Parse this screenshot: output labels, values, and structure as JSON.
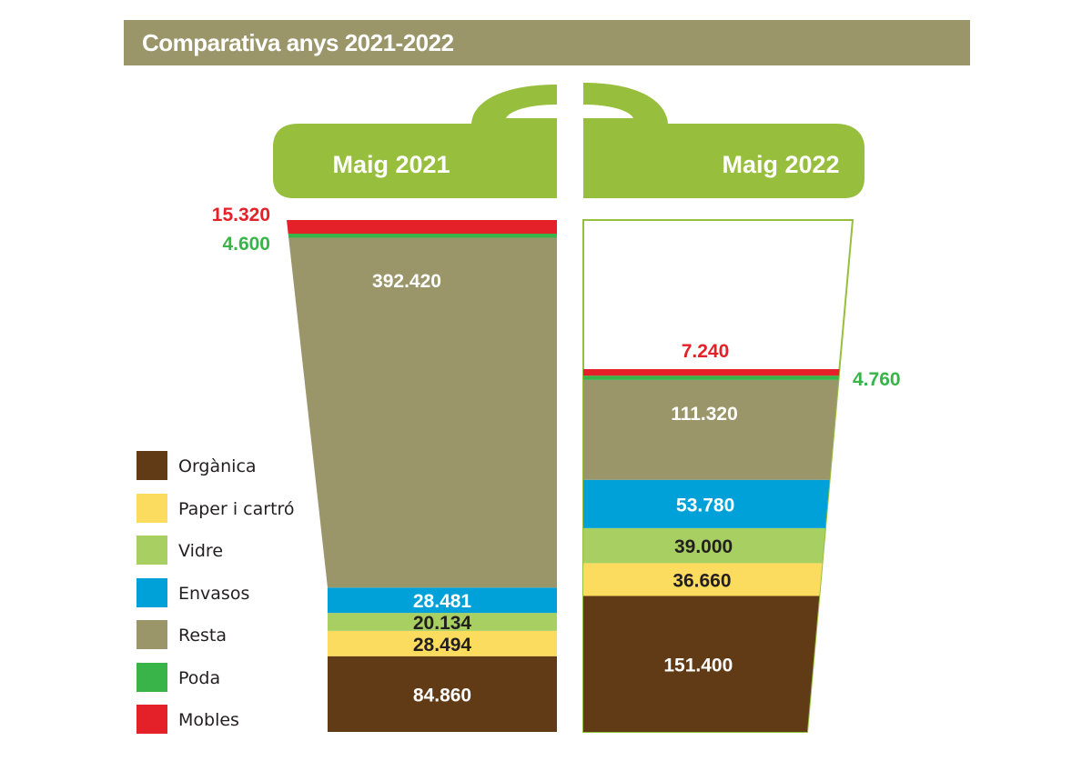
{
  "title": "Comparativa anys 2021-2022",
  "colors": {
    "title_bar": "#9a966a",
    "lid": "#97bf3d",
    "Orgànica": "#613a16",
    "Paper i cartró": "#fbdc5f",
    "Vidre": "#a7cf62",
    "Envasos": "#00a1d8",
    "Resta": "#9a966a",
    "Poda": "#38b449",
    "Mobles": "#e42129"
  },
  "legend": [
    {
      "name": "Orgànica"
    },
    {
      "name": "Paper i cartró"
    },
    {
      "name": "Vidre"
    },
    {
      "name": "Envasos"
    },
    {
      "name": "Resta"
    },
    {
      "name": "Poda"
    },
    {
      "name": "Mobles"
    }
  ],
  "chart_data": {
    "type": "bar",
    "stacked": true,
    "categories": [
      "Maig 2021",
      "Maig 2022"
    ],
    "series": [
      {
        "name": "Orgànica",
        "values": [
          84860,
          151400
        ],
        "labels": [
          "84.860",
          "151.400"
        ]
      },
      {
        "name": "Paper i cartró",
        "values": [
          28494,
          36660
        ],
        "labels": [
          "28.494",
          "36.660"
        ]
      },
      {
        "name": "Vidre",
        "values": [
          20134,
          39000
        ],
        "labels": [
          "20.134",
          "39.000"
        ]
      },
      {
        "name": "Envasos",
        "values": [
          28481,
          53780
        ],
        "labels": [
          "28.481",
          "53.780"
        ]
      },
      {
        "name": "Resta",
        "values": [
          392420,
          111320
        ],
        "labels": [
          "392.420",
          "111.320"
        ]
      },
      {
        "name": "Poda",
        "values": [
          4600,
          4760
        ],
        "labels": [
          "4.600",
          "4.760"
        ]
      },
      {
        "name": "Mobles",
        "values": [
          15320,
          7240
        ],
        "labels": [
          "15.320",
          "7.240"
        ]
      }
    ],
    "legend_position": "left",
    "grid": false
  }
}
